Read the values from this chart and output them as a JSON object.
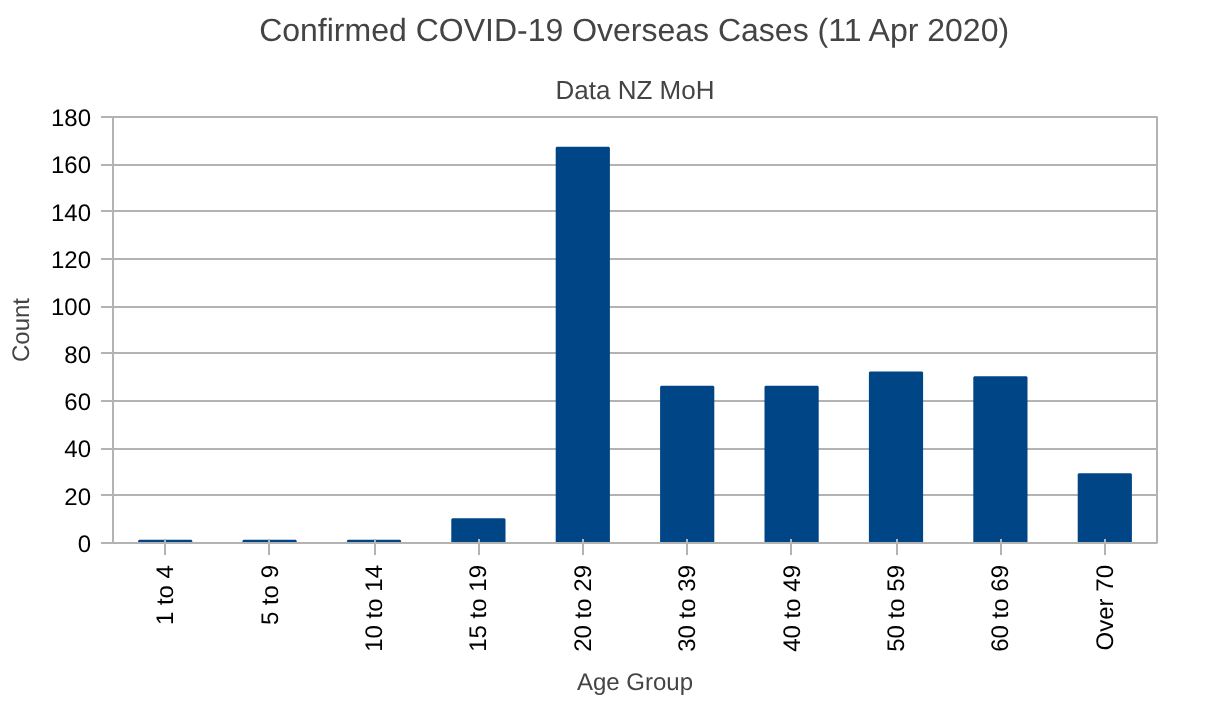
{
  "chart_data": {
    "type": "bar",
    "title": "Confirmed COVID-19 Overseas Cases (11 Apr 2020)",
    "subtitle": "Data NZ MoH",
    "xlabel": "Age Group",
    "ylabel": "Count",
    "categories": [
      "1 to 4",
      "5 to 9",
      "10 to 14",
      "15 to 19",
      "20 to 29",
      "30 to 39",
      "40 to 49",
      "50 to 59",
      "60 to 69",
      "Over 70"
    ],
    "values": [
      1,
      1,
      1,
      10,
      167,
      66,
      66,
      72,
      70,
      29
    ],
    "color": "#004586",
    "ylim": [
      0,
      180
    ],
    "yticks": [
      0,
      20,
      40,
      60,
      80,
      100,
      120,
      140,
      160,
      180
    ],
    "grid": "y"
  }
}
